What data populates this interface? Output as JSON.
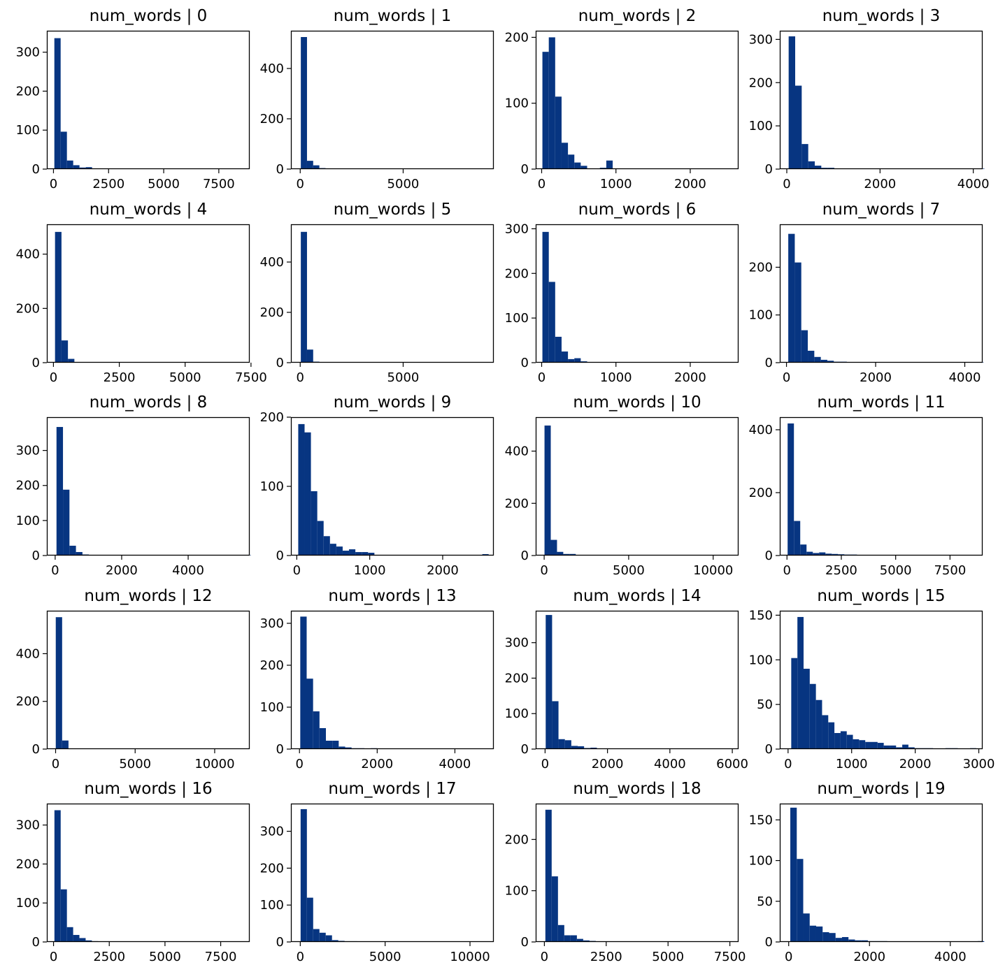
{
  "style": {
    "bar_color": "#073581",
    "axis_color": "#000000",
    "background": "#ffffff"
  },
  "chart_data": [
    {
      "type": "bar",
      "title": "num_words | 0",
      "xlim": [
        -300,
        8900
      ],
      "ylim": [
        0,
        355
      ],
      "xticks": [
        0,
        2500,
        5000,
        7500
      ],
      "yticks": [
        0,
        100,
        200,
        300
      ],
      "bin_start": 40,
      "bin_width": 285,
      "values": [
        336,
        96,
        22,
        10,
        4,
        5,
        1,
        0,
        0,
        0,
        0,
        0,
        0,
        0,
        0,
        0,
        0,
        0,
        0,
        0,
        0,
        0,
        0,
        0,
        0,
        0,
        0,
        0,
        0,
        1
      ]
    },
    {
      "type": "bar",
      "title": "num_words | 1",
      "xlim": [
        -450,
        9400
      ],
      "ylim": [
        0,
        550
      ],
      "xticks": [
        0,
        5000
      ],
      "yticks": [
        0,
        200,
        400
      ],
      "bin_start": 30,
      "bin_width": 300,
      "values": [
        525,
        33,
        15,
        4,
        1,
        0,
        0,
        0,
        0,
        0,
        0,
        0,
        0,
        0,
        0,
        0,
        0,
        0,
        0,
        0,
        0,
        0,
        0,
        0,
        0,
        0,
        0,
        0,
        0,
        1
      ]
    },
    {
      "type": "bar",
      "title": "num_words | 2",
      "xlim": [
        -80,
        2650
      ],
      "ylim": [
        0,
        210
      ],
      "xticks": [
        0,
        1000,
        2000
      ],
      "yticks": [
        0,
        100,
        200
      ],
      "bin_start": 10,
      "bin_width": 86,
      "values": [
        178,
        200,
        110,
        40,
        22,
        10,
        5,
        0,
        1,
        2,
        13,
        0,
        0,
        0,
        0,
        0,
        0,
        0,
        0,
        0,
        0,
        0,
        0,
        0,
        0,
        0,
        0,
        0,
        0,
        1
      ]
    },
    {
      "type": "bar",
      "title": "num_words | 3",
      "xlim": [
        -150,
        4200
      ],
      "ylim": [
        0,
        320
      ],
      "xticks": [
        0,
        2000,
        4000
      ],
      "yticks": [
        0,
        100,
        200,
        300
      ],
      "bin_start": 40,
      "bin_width": 140,
      "values": [
        307,
        193,
        58,
        18,
        8,
        3,
        3,
        0,
        0,
        1,
        0,
        0,
        0,
        0,
        0,
        0,
        0,
        0,
        0,
        0,
        0,
        0,
        0,
        0,
        0,
        0,
        0,
        0,
        0,
        1
      ]
    },
    {
      "type": "bar",
      "title": "num_words | 4",
      "xlim": [
        -250,
        7450
      ],
      "ylim": [
        0,
        510
      ],
      "xticks": [
        0,
        2500,
        5000,
        7500
      ],
      "yticks": [
        0,
        200,
        400
      ],
      "bin_start": 60,
      "bin_width": 245,
      "values": [
        482,
        82,
        14,
        2,
        1,
        0,
        0,
        0,
        0,
        0,
        0,
        0,
        0,
        0,
        0,
        0,
        0,
        0,
        0,
        0,
        0,
        0,
        0,
        0,
        0,
        0,
        0,
        0,
        0,
        1
      ]
    },
    {
      "type": "bar",
      "title": "num_words | 5",
      "xlim": [
        -450,
        9400
      ],
      "ylim": [
        0,
        550
      ],
      "xticks": [
        0,
        5000
      ],
      "yticks": [
        0,
        200,
        400
      ],
      "bin_start": 30,
      "bin_width": 300,
      "values": [
        520,
        52,
        4,
        1,
        0,
        0,
        0,
        0,
        0,
        0,
        0,
        0,
        0,
        0,
        0,
        0,
        0,
        0,
        0,
        0,
        1,
        0,
        0,
        0,
        0,
        0,
        0,
        0,
        0,
        1
      ]
    },
    {
      "type": "bar",
      "title": "num_words | 6",
      "xlim": [
        -80,
        2650
      ],
      "ylim": [
        0,
        310
      ],
      "xticks": [
        0,
        1000,
        2000
      ],
      "yticks": [
        0,
        100,
        200,
        300
      ],
      "bin_start": 10,
      "bin_width": 86,
      "values": [
        293,
        181,
        58,
        25,
        8,
        10,
        3,
        0,
        1,
        0,
        0,
        0,
        0,
        0,
        0,
        0,
        0,
        0,
        0,
        0,
        0,
        0,
        0,
        0,
        0,
        0,
        0,
        0,
        0,
        1
      ]
    },
    {
      "type": "bar",
      "title": "num_words | 7",
      "xlim": [
        -150,
        4400
      ],
      "ylim": [
        0,
        290
      ],
      "xticks": [
        0,
        2000,
        4000
      ],
      "yticks": [
        0,
        100,
        200
      ],
      "bin_start": 40,
      "bin_width": 146,
      "values": [
        270,
        210,
        68,
        25,
        12,
        6,
        4,
        2,
        2,
        1,
        0,
        0,
        0,
        0,
        0,
        0,
        0,
        0,
        0,
        0,
        0,
        0,
        0,
        0,
        0,
        0,
        0,
        0,
        0,
        1
      ]
    },
    {
      "type": "bar",
      "title": "num_words | 8",
      "xlim": [
        -250,
        5850
      ],
      "ylim": [
        0,
        395
      ],
      "xticks": [
        0,
        2000,
        4000
      ],
      "yticks": [
        0,
        100,
        200,
        300
      ],
      "bin_start": 40,
      "bin_width": 195,
      "values": [
        367,
        188,
        28,
        10,
        3,
        0,
        0,
        0,
        0,
        0,
        0,
        0,
        0,
        0,
        0,
        0,
        0,
        0,
        0,
        0,
        0,
        0,
        0,
        0,
        0,
        0,
        0,
        0,
        0,
        1
      ]
    },
    {
      "type": "bar",
      "title": "num_words | 9",
      "xlim": [
        -80,
        2700
      ],
      "ylim": [
        0,
        200
      ],
      "xticks": [
        0,
        1000,
        2000
      ],
      "yticks": [
        0,
        100,
        200
      ],
      "bin_start": 20,
      "bin_width": 87,
      "values": [
        190,
        178,
        93,
        50,
        28,
        17,
        13,
        7,
        9,
        5,
        5,
        4,
        1,
        1,
        1,
        0,
        0,
        1,
        0,
        0,
        0,
        0,
        0,
        0,
        0,
        0,
        0,
        0,
        0,
        2
      ]
    },
    {
      "type": "bar",
      "title": "num_words | 10",
      "xlim": [
        -500,
        11500
      ],
      "ylim": [
        0,
        530
      ],
      "xticks": [
        0,
        5000,
        10000
      ],
      "yticks": [
        0,
        200,
        400
      ],
      "bin_start": 20,
      "bin_width": 370,
      "values": [
        498,
        60,
        14,
        6,
        6,
        1,
        1,
        0,
        0,
        0,
        0,
        0,
        0,
        0,
        0,
        0,
        0,
        0,
        0,
        0,
        0,
        0,
        0,
        0,
        0,
        0,
        0,
        0,
        0,
        1
      ]
    },
    {
      "type": "bar",
      "title": "num_words | 11",
      "xlim": [
        -330,
        9000
      ],
      "ylim": [
        0,
        440
      ],
      "xticks": [
        0,
        2500,
        5000,
        7500
      ],
      "yticks": [
        0,
        200,
        400
      ],
      "bin_start": 30,
      "bin_width": 290,
      "values": [
        420,
        110,
        35,
        12,
        8,
        10,
        6,
        5,
        4,
        3,
        3,
        2,
        1,
        1,
        0,
        1,
        0,
        0,
        0,
        0,
        0,
        0,
        0,
        0,
        0,
        0,
        0,
        0,
        0,
        1
      ]
    },
    {
      "type": "bar",
      "title": "num_words | 12",
      "xlim": [
        -550,
        12200
      ],
      "ylim": [
        0,
        580
      ],
      "xticks": [
        0,
        5000,
        10000
      ],
      "yticks": [
        0,
        200,
        400
      ],
      "bin_start": 10,
      "bin_width": 400,
      "values": [
        553,
        36,
        2,
        1,
        0,
        0,
        0,
        0,
        0,
        0,
        0,
        0,
        0,
        0,
        0,
        0,
        0,
        0,
        0,
        0,
        0,
        0,
        0,
        0,
        0,
        0,
        0,
        0,
        0,
        1
      ]
    },
    {
      "type": "bar",
      "title": "num_words | 13",
      "xlim": [
        -220,
        5000
      ],
      "ylim": [
        0,
        330
      ],
      "xticks": [
        0,
        2000,
        4000
      ],
      "yticks": [
        0,
        100,
        200,
        300
      ],
      "bin_start": 20,
      "bin_width": 165,
      "values": [
        316,
        168,
        90,
        50,
        20,
        20,
        6,
        4,
        2,
        2,
        1,
        2,
        1,
        1,
        0,
        0,
        0,
        0,
        0,
        0,
        0,
        0,
        0,
        0,
        0,
        0,
        0,
        0,
        0,
        1
      ]
    },
    {
      "type": "bar",
      "title": "num_words | 14",
      "xlim": [
        -300,
        6200
      ],
      "ylim": [
        0,
        390
      ],
      "xticks": [
        0,
        2000,
        4000,
        6000
      ],
      "yticks": [
        0,
        100,
        200,
        300
      ],
      "bin_start": 20,
      "bin_width": 205,
      "values": [
        378,
        135,
        28,
        25,
        9,
        8,
        3,
        4,
        2,
        2,
        1,
        1,
        1,
        0,
        0,
        0,
        0,
        0,
        0,
        0,
        0,
        0,
        0,
        0,
        0,
        0,
        0,
        0,
        0,
        1
      ]
    },
    {
      "type": "bar",
      "title": "num_words | 15",
      "xlim": [
        -130,
        3060
      ],
      "ylim": [
        0,
        155
      ],
      "xticks": [
        0,
        1000,
        2000,
        3000
      ],
      "yticks": [
        0,
        50,
        100,
        150
      ],
      "bin_start": 50,
      "bin_width": 97,
      "values": [
        102,
        148,
        90,
        73,
        55,
        38,
        30,
        18,
        20,
        16,
        11,
        10,
        8,
        8,
        7,
        4,
        4,
        2,
        5,
        2,
        1,
        1,
        1,
        0,
        0,
        1,
        1,
        0,
        0,
        1
      ]
    },
    {
      "type": "bar",
      "title": "num_words | 16",
      "xlim": [
        -300,
        8800
      ],
      "ylim": [
        0,
        355
      ],
      "xticks": [
        0,
        2500,
        5000,
        7500
      ],
      "yticks": [
        0,
        100,
        200,
        300
      ],
      "bin_start": 40,
      "bin_width": 280,
      "values": [
        338,
        135,
        38,
        18,
        10,
        4,
        2,
        1,
        1,
        0,
        0,
        0,
        0,
        0,
        0,
        0,
        0,
        0,
        0,
        0,
        0,
        0,
        0,
        0,
        0,
        0,
        0,
        0,
        0,
        1
      ]
    },
    {
      "type": "bar",
      "title": "num_words | 17",
      "xlim": [
        -550,
        11400
      ],
      "ylim": [
        0,
        375
      ],
      "xticks": [
        0,
        5000,
        10000
      ],
      "yticks": [
        0,
        100,
        200,
        300
      ],
      "bin_start": 20,
      "bin_width": 370,
      "values": [
        360,
        120,
        35,
        25,
        18,
        5,
        3,
        2,
        2,
        0,
        0,
        0,
        0,
        0,
        0,
        0,
        0,
        0,
        0,
        0,
        0,
        0,
        0,
        0,
        0,
        0,
        0,
        0,
        0,
        1
      ]
    },
    {
      "type": "bar",
      "title": "num_words | 18",
      "xlim": [
        -350,
        7850
      ],
      "ylim": [
        0,
        270
      ],
      "xticks": [
        0,
        2500,
        5000,
        7500
      ],
      "yticks": [
        0,
        100,
        200
      ],
      "bin_start": 40,
      "bin_width": 255,
      "values": [
        258,
        128,
        33,
        13,
        13,
        6,
        3,
        2,
        1,
        1,
        0,
        0,
        0,
        0,
        0,
        0,
        0,
        0,
        0,
        0,
        0,
        0,
        0,
        0,
        0,
        0,
        0,
        0,
        0,
        1
      ]
    },
    {
      "type": "bar",
      "title": "num_words | 19",
      "xlim": [
        -220,
        4800
      ],
      "ylim": [
        0,
        170
      ],
      "xticks": [
        0,
        2000,
        4000
      ],
      "yticks": [
        0,
        50,
        100,
        150
      ],
      "bin_start": 40,
      "bin_width": 160,
      "values": [
        165,
        102,
        35,
        20,
        19,
        12,
        11,
        5,
        6,
        3,
        2,
        2,
        1,
        1,
        1,
        0,
        0,
        0,
        0,
        0,
        0,
        0,
        0,
        0,
        0,
        0,
        0,
        0,
        0,
        1
      ]
    }
  ]
}
